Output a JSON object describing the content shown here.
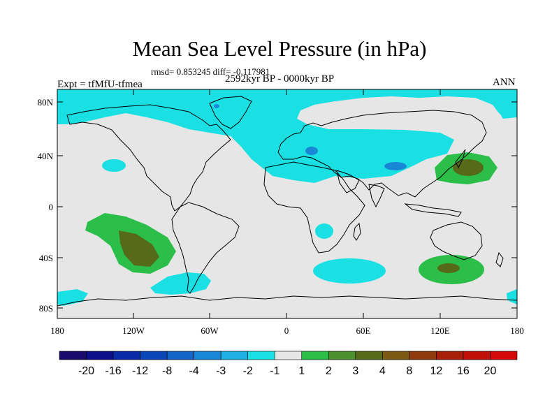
{
  "header": {
    "title": "Mean Sea Level Pressure (in hPa)",
    "stats": "rmsd= 0.853245 diff= -0.117981",
    "period": "2592kyr BP - 0000kyr BP",
    "experiment": "Expt = tfMfU-tfmea",
    "season": "ANN"
  },
  "axes": {
    "lat_labels": [
      "80N",
      "40N",
      "0",
      "40S",
      "80S"
    ],
    "lon_labels": [
      "180",
      "120W",
      "60W",
      "0",
      "60E",
      "120E",
      "180"
    ]
  },
  "colorbar": {
    "labels": [
      "-20",
      "-16",
      "-12",
      "-8",
      "-4",
      "-3",
      "-2",
      "-1",
      "1",
      "2",
      "3",
      "4",
      "8",
      "12",
      "16",
      "20"
    ],
    "colors": [
      "#1a0a6e",
      "#0d0f8a",
      "#0a2aa8",
      "#0a46b8",
      "#1464c8",
      "#1a86d6",
      "#1fb0e6",
      "#1ae0e4",
      "#e6e6e6",
      "#2bbf4a",
      "#4b8f2f",
      "#556b1a",
      "#7a5a12",
      "#8f3a0c",
      "#a8200a",
      "#c01008",
      "#d40808"
    ]
  },
  "colors": {
    "neutral": "#e6e6e6",
    "neg1": "#1ae0e4",
    "neg2": "#1fb0e6",
    "neg3": "#1a86d6",
    "pos1": "#2bbf4a",
    "pos2": "#4b8f2f",
    "pos3": "#556b1a"
  }
}
